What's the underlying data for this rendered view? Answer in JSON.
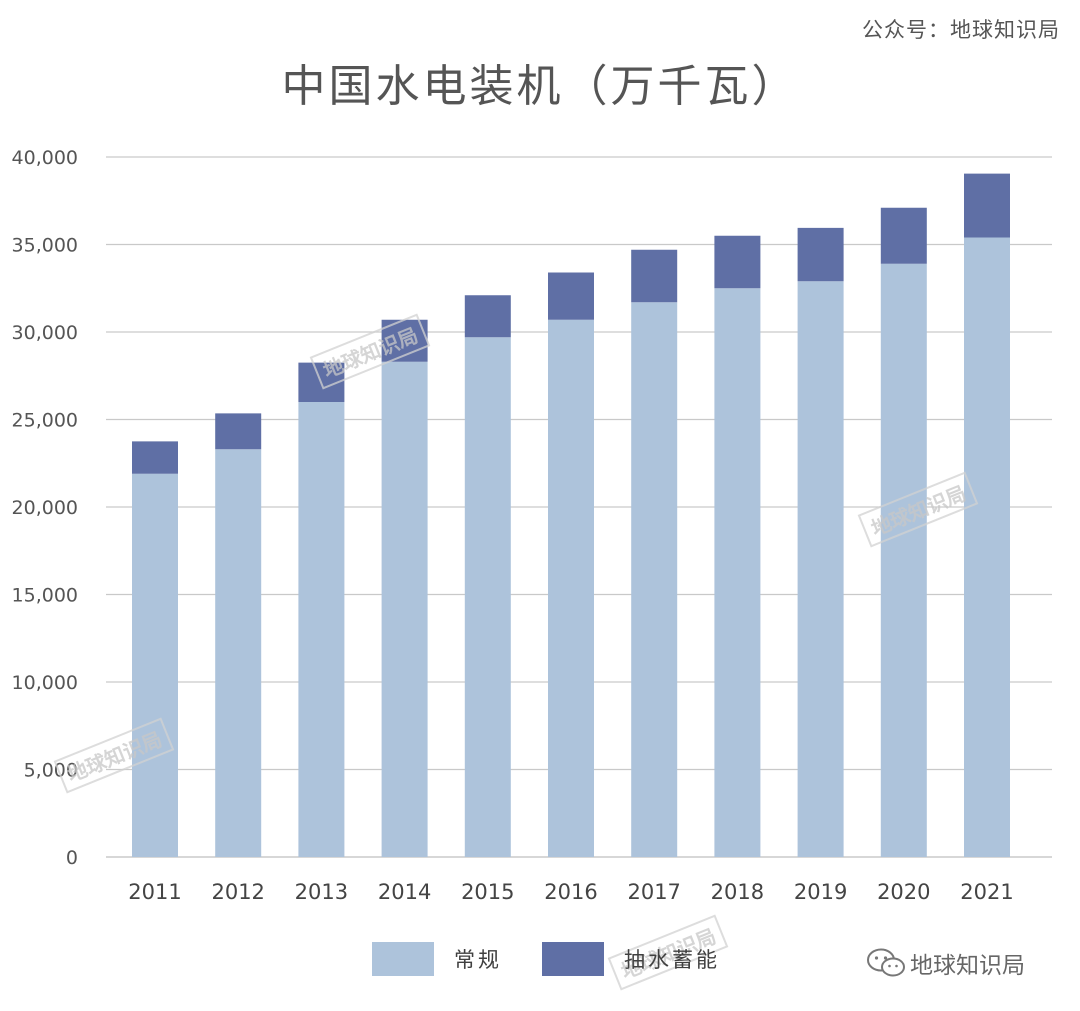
{
  "header": {
    "source_credit": "公众号：地球知识局",
    "title": "中国水电装机（万千瓦）"
  },
  "watermark_text": "地球知识局",
  "brand_logo_text": "地球知识局",
  "chart_data": {
    "type": "bar",
    "stacked": true,
    "title": "中国水电装机（万千瓦）",
    "xlabel": "",
    "ylabel": "",
    "categories": [
      "2011",
      "2012",
      "2013",
      "2014",
      "2015",
      "2016",
      "2017",
      "2018",
      "2019",
      "2020",
      "2021"
    ],
    "series": [
      {
        "name": "常规",
        "color": "#adc3db",
        "values": [
          21900,
          23300,
          26000,
          28300,
          29700,
          30700,
          31700,
          32500,
          32900,
          33900,
          35400
        ]
      },
      {
        "name": "抽水蓄能",
        "color": "#5f6fa5",
        "values": [
          1850,
          2050,
          2250,
          2400,
          2400,
          2700,
          3000,
          3000,
          3050,
          3200,
          3650
        ]
      }
    ],
    "ylim": [
      0,
      40000
    ],
    "yticks": [
      0,
      5000,
      10000,
      15000,
      20000,
      25000,
      30000,
      35000,
      40000
    ],
    "ytick_labels": [
      "0",
      "5,000",
      "10,000",
      "15,000",
      "20,000",
      "25,000",
      "30,000",
      "35,000",
      "40,000"
    ],
    "grid": true,
    "legend_position": "bottom-center"
  }
}
